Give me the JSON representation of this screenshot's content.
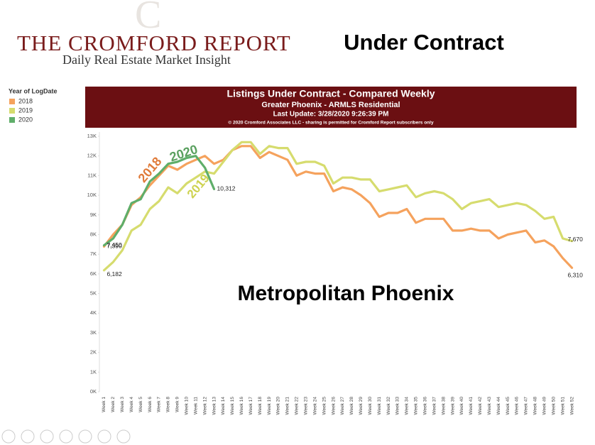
{
  "logo": {
    "title": "THE CROMFORD REPORT",
    "subtitle": "Daily Real Estate Market Insight"
  },
  "heading": "Under Contract",
  "chart_data": {
    "type": "line",
    "title": "Listings Under Contract - Compared Weekly",
    "subtitle": "Greater Phoenix - ARMLS Residential",
    "update": "Last Update: 3/28/2020 9:26:39 PM",
    "copyright": "© 2020 Cromford Associates LLC - sharing is permitted for Cromford Report subscribers only",
    "legend_title": "Year of LogDate",
    "legend": "top-left",
    "grid": false,
    "annotations": [
      "2018",
      "2019",
      "2020",
      "Metropolitan Phoenix"
    ],
    "categories": [
      "Week 1",
      "Week 2",
      "Week 3",
      "Week 4",
      "Week 5",
      "Week 6",
      "Week 7",
      "Week 8",
      "Week 9",
      "Week 10",
      "Week 11",
      "Week 12",
      "Week 13",
      "Week 14",
      "Week 15",
      "Week 16",
      "Week 17",
      "Week 18",
      "Week 19",
      "Week 20",
      "Week 21",
      "Week 22",
      "Week 23",
      "Week 24",
      "Week 25",
      "Week 26",
      "Week 27",
      "Week 28",
      "Week 29",
      "Week 30",
      "Week 31",
      "Week 32",
      "Week 33",
      "Week 34",
      "Week 35",
      "Week 36",
      "Week 37",
      "Week 38",
      "Week 39",
      "Week 40",
      "Week 41",
      "Week 42",
      "Week 43",
      "Week 44",
      "Week 45",
      "Week 46",
      "Week 47",
      "Week 48",
      "Week 49",
      "Week 50",
      "Week 51",
      "Week 52"
    ],
    "ylim": [
      0,
      13000
    ],
    "yticks": [
      {
        "value": 0,
        "label": "0K"
      },
      {
        "value": 1000,
        "label": "1K"
      },
      {
        "value": 2000,
        "label": "2K"
      },
      {
        "value": 3000,
        "label": "3K"
      },
      {
        "value": 4000,
        "label": "4K"
      },
      {
        "value": 5000,
        "label": "5K"
      },
      {
        "value": 6000,
        "label": "6K"
      },
      {
        "value": 7000,
        "label": "7K"
      },
      {
        "value": 8000,
        "label": "8K"
      },
      {
        "value": 9000,
        "label": "9K"
      },
      {
        "value": 10000,
        "label": "10K"
      },
      {
        "value": 11000,
        "label": "11K"
      },
      {
        "value": 12000,
        "label": "12K"
      },
      {
        "value": 13000,
        "label": "13K"
      }
    ],
    "series": [
      {
        "name": "2018",
        "color": "#f5a25d",
        "values": [
          7390,
          8000,
          8500,
          9500,
          9900,
          10500,
          11000,
          11500,
          11300,
          11600,
          11800,
          12000,
          11600,
          11800,
          12300,
          12500,
          12500,
          11900,
          12200,
          12000,
          11800,
          11000,
          11200,
          11100,
          11100,
          10200,
          10400,
          10300,
          10000,
          9600,
          8900,
          9100,
          9100,
          9300,
          8600,
          8800,
          8800,
          8800,
          8200,
          8200,
          8300,
          8200,
          8200,
          7800,
          8000,
          8100,
          8200,
          7600,
          7700,
          7400,
          6800,
          6310
        ],
        "value_labels": [
          "7,390",
          null,
          null,
          null,
          null,
          null,
          null,
          null,
          null,
          null,
          null,
          null,
          null,
          null,
          null,
          null,
          null,
          null,
          null,
          null,
          null,
          null,
          null,
          null,
          null,
          null,
          null,
          null,
          null,
          null,
          null,
          null,
          null,
          null,
          null,
          null,
          null,
          null,
          null,
          null,
          null,
          null,
          null,
          null,
          null,
          null,
          null,
          null,
          null,
          null,
          null,
          "6,310"
        ]
      },
      {
        "name": "2019",
        "color": "#d6dc6e",
        "values": [
          6182,
          6600,
          7200,
          8200,
          8500,
          9300,
          9700,
          10400,
          10100,
          10600,
          10900,
          11200,
          11100,
          11700,
          12300,
          12700,
          12700,
          12100,
          12500,
          12400,
          12400,
          11600,
          11700,
          11700,
          11500,
          10600,
          10900,
          10900,
          10800,
          10800,
          10200,
          10300,
          10400,
          10500,
          9900,
          10100,
          10200,
          10100,
          9800,
          9300,
          9600,
          9700,
          9800,
          9400,
          9500,
          9600,
          9500,
          9200,
          8800,
          8900,
          7800,
          7670
        ],
        "value_labels": [
          "6,182",
          null,
          null,
          null,
          null,
          null,
          null,
          null,
          null,
          null,
          null,
          null,
          null,
          null,
          null,
          null,
          null,
          null,
          null,
          null,
          null,
          null,
          null,
          null,
          null,
          null,
          null,
          null,
          null,
          null,
          null,
          null,
          null,
          null,
          null,
          null,
          null,
          null,
          null,
          null,
          null,
          null,
          null,
          null,
          null,
          null,
          null,
          null,
          null,
          null,
          null,
          "7,670"
        ]
      },
      {
        "name": "2020",
        "color": "#5fae6a",
        "values": [
          7450,
          7800,
          8500,
          9600,
          9800,
          10700,
          11100,
          11600,
          11700,
          11900,
          12000,
          11400,
          10312,
          null,
          null,
          null,
          null,
          null,
          null,
          null,
          null,
          null,
          null,
          null,
          null,
          null,
          null,
          null,
          null,
          null,
          null,
          null,
          null,
          null,
          null,
          null,
          null,
          null,
          null,
          null,
          null,
          null,
          null,
          null,
          null,
          null,
          null,
          null,
          null,
          null,
          null,
          null
        ],
        "value_labels": [
          "7,450",
          null,
          null,
          null,
          null,
          null,
          null,
          null,
          null,
          null,
          null,
          null,
          "10,312",
          null,
          null,
          null,
          null,
          null,
          null,
          null,
          null,
          null,
          null,
          null,
          null,
          null,
          null,
          null,
          null,
          null,
          null,
          null,
          null,
          null,
          null,
          null,
          null,
          null,
          null,
          null,
          null,
          null,
          null,
          null,
          null,
          null,
          null,
          null,
          null,
          null,
          null,
          null
        ]
      }
    ]
  }
}
